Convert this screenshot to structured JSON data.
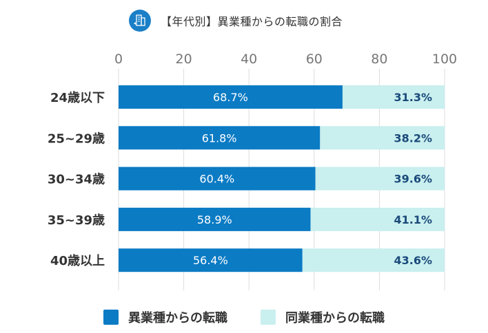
{
  "header": {
    "title": "【年代別】異業種からの転職の割合",
    "icon": "building-icon"
  },
  "colors": {
    "series_a": "#0b7bc4",
    "series_b": "#c9efef",
    "grid": "#dddddd",
    "icon_bg": "#1a7fc7"
  },
  "chart_data": {
    "type": "bar",
    "orientation": "horizontal",
    "stacked": true,
    "title": "【年代別】異業種からの転職の割合",
    "xlabel": "",
    "ylabel": "",
    "xlim": [
      0,
      100
    ],
    "x_ticks": [
      "0",
      "20",
      "40",
      "60",
      "80",
      "100"
    ],
    "grid": true,
    "legend_position": "bottom",
    "categories": [
      "24歳以下",
      "25~29歳",
      "30~34歳",
      "35~39歳",
      "40歳以上"
    ],
    "series": [
      {
        "name": "異業種からの転職",
        "values": [
          68.7,
          61.8,
          60.4,
          58.9,
          56.4
        ],
        "labels": [
          "68.7%",
          "61.8%",
          "60.4%",
          "58.9%",
          "56.4%"
        ]
      },
      {
        "name": "同業種からの転職",
        "values": [
          31.3,
          38.2,
          39.6,
          41.1,
          43.6
        ],
        "labels": [
          "31.3%",
          "38.2%",
          "39.6%",
          "41.1%",
          "43.6%"
        ]
      }
    ]
  }
}
